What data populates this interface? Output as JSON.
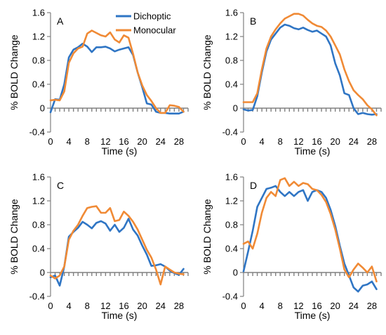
{
  "colors": {
    "dichoptic": "#2F75C4",
    "monocular": "#F08A35",
    "axis": "#808080"
  },
  "chart_data": [
    {
      "type": "line",
      "panel_label": "A",
      "xlabel": "Time (s)",
      "ylabel": "% BOLD Change",
      "xlim": [
        0,
        30
      ],
      "ylim": [
        -0.4,
        1.6
      ],
      "xticks": [
        0,
        4,
        8,
        12,
        16,
        20,
        24,
        28
      ],
      "xtick_labels": [
        "0",
        "4",
        "8",
        "12",
        "16",
        "20",
        "24",
        "28"
      ],
      "yticks": [
        -0.4,
        0,
        0.4,
        0.8,
        1.2,
        1.6
      ],
      "ytick_labels": [
        "-0.4",
        "0",
        "0.4",
        "0.8",
        "1.2",
        "1.6"
      ],
      "legend": {
        "show": true,
        "placement": "top-right"
      },
      "x": [
        0,
        1,
        2,
        3,
        4,
        5,
        6,
        7,
        8,
        9,
        10,
        11,
        12,
        13,
        14,
        15,
        16,
        17,
        18,
        19,
        20,
        21,
        22,
        23,
        24,
        25,
        26,
        27,
        28,
        29
      ],
      "series": [
        {
          "name": "Dichoptic",
          "color": "#2F75C4",
          "values": [
            -0.07,
            0.15,
            0.14,
            0.4,
            0.85,
            0.98,
            1.02,
            1.08,
            1.03,
            0.94,
            1.02,
            1.02,
            1.03,
            1.0,
            0.95,
            0.98,
            1.0,
            1.02,
            0.89,
            0.6,
            0.35,
            0.08,
            0.06,
            -0.06,
            -0.08,
            -0.08,
            -0.09,
            -0.09,
            -0.09,
            -0.06
          ]
        },
        {
          "name": "Monocular",
          "color": "#F08A35",
          "values": [
            0.13,
            0.14,
            0.13,
            0.28,
            0.76,
            0.92,
            1.0,
            1.03,
            1.25,
            1.3,
            1.26,
            1.22,
            1.2,
            1.27,
            1.15,
            1.1,
            1.22,
            1.18,
            0.91,
            0.6,
            0.38,
            0.22,
            0.12,
            0.0,
            -0.08,
            -0.08,
            0.05,
            0.04,
            0.02,
            -0.06
          ]
        }
      ]
    },
    {
      "type": "line",
      "panel_label": "B",
      "xlabel": "Time (s)",
      "ylabel": "% BOLD Change",
      "xlim": [
        0,
        30
      ],
      "ylim": [
        -0.4,
        1.6
      ],
      "xticks": [
        0,
        4,
        8,
        12,
        16,
        20,
        24,
        28
      ],
      "xtick_labels": [
        "0",
        "4",
        "8",
        "12",
        "16",
        "20",
        "24",
        "28"
      ],
      "yticks": [
        -0.4,
        0,
        0.4,
        0.8,
        1.2,
        1.6
      ],
      "ytick_labels": [
        "-0.4",
        "0",
        "0.4",
        "0.8",
        "1.2",
        "1.6"
      ],
      "legend": {
        "show": false
      },
      "x": [
        0,
        1,
        2,
        3,
        4,
        5,
        6,
        7,
        8,
        9,
        10,
        11,
        12,
        13,
        14,
        15,
        16,
        17,
        18,
        19,
        20,
        21,
        22,
        23,
        24,
        25,
        26,
        27,
        28,
        29
      ],
      "series": [
        {
          "name": "Dichoptic",
          "color": "#2F75C4",
          "values": [
            -0.02,
            -0.04,
            -0.03,
            0.2,
            0.6,
            0.95,
            1.15,
            1.25,
            1.35,
            1.4,
            1.38,
            1.34,
            1.32,
            1.35,
            1.31,
            1.28,
            1.3,
            1.25,
            1.2,
            1.05,
            0.75,
            0.55,
            0.25,
            0.22,
            0.0,
            -0.1,
            -0.08,
            -0.1,
            -0.11,
            -0.1
          ]
        },
        {
          "name": "Monocular",
          "color": "#F08A35",
          "values": [
            0.1,
            0.1,
            0.1,
            0.25,
            0.65,
            1.0,
            1.2,
            1.32,
            1.42,
            1.5,
            1.54,
            1.58,
            1.58,
            1.55,
            1.48,
            1.42,
            1.38,
            1.36,
            1.3,
            1.2,
            1.05,
            0.9,
            0.65,
            0.45,
            0.3,
            0.22,
            0.15,
            0.05,
            -0.02,
            -0.12
          ]
        }
      ]
    },
    {
      "type": "line",
      "panel_label": "C",
      "xlabel": "Time (s)",
      "ylabel": "% BOLD Change",
      "xlim": [
        0,
        30
      ],
      "ylim": [
        -0.4,
        1.6
      ],
      "xticks": [
        0,
        4,
        8,
        12,
        16,
        20,
        24,
        28
      ],
      "xtick_labels": [
        "0",
        "4",
        "8",
        "12",
        "16",
        "20",
        "24",
        "28"
      ],
      "yticks": [
        -0.4,
        0,
        0.4,
        0.8,
        1.2,
        1.6
      ],
      "ytick_labels": [
        "-0.4",
        "0",
        "0.4",
        "0.8",
        "1.2",
        "1.6"
      ],
      "legend": {
        "show": false
      },
      "x": [
        0,
        1,
        2,
        3,
        4,
        5,
        6,
        7,
        8,
        9,
        10,
        11,
        12,
        13,
        14,
        15,
        16,
        17,
        18,
        19,
        20,
        21,
        22,
        23,
        24,
        25,
        26,
        27,
        28,
        29
      ],
      "series": [
        {
          "name": "Dichoptic",
          "color": "#2F75C4",
          "values": [
            -0.08,
            -0.05,
            -0.22,
            0.1,
            0.6,
            0.68,
            0.75,
            0.85,
            0.8,
            0.74,
            0.83,
            0.86,
            0.82,
            0.7,
            0.8,
            0.68,
            0.75,
            0.9,
            0.72,
            0.62,
            0.45,
            0.3,
            0.11,
            0.12,
            0.14,
            0.1,
            0.03,
            -0.01,
            -0.04,
            0.06
          ]
        },
        {
          "name": "Monocular",
          "color": "#F08A35",
          "values": [
            -0.05,
            -0.1,
            -0.05,
            0.1,
            0.55,
            0.7,
            0.8,
            0.95,
            1.08,
            1.1,
            1.11,
            1.0,
            1.0,
            1.08,
            0.86,
            0.88,
            1.02,
            0.95,
            0.85,
            0.72,
            0.55,
            0.38,
            0.25,
            0.05,
            -0.2,
            0.1,
            0.05,
            0.0,
            -0.02,
            -0.03
          ]
        }
      ]
    },
    {
      "type": "line",
      "panel_label": "D",
      "xlabel": "Time (s)",
      "ylabel": "% BOLD Change",
      "xlim": [
        0,
        30
      ],
      "ylim": [
        -0.4,
        1.6
      ],
      "xticks": [
        0,
        4,
        8,
        12,
        16,
        20,
        24,
        28
      ],
      "xtick_labels": [
        "0",
        "4",
        "8",
        "12",
        "16",
        "20",
        "24",
        "28"
      ],
      "yticks": [
        -0.4,
        0,
        0.4,
        0.8,
        1.2,
        1.6
      ],
      "ytick_labels": [
        "-0.4",
        "0",
        "0.4",
        "0.8",
        "1.2",
        "1.6"
      ],
      "legend": {
        "show": false
      },
      "x": [
        0,
        1,
        2,
        3,
        4,
        5,
        6,
        7,
        8,
        9,
        10,
        11,
        12,
        13,
        14,
        15,
        16,
        17,
        18,
        19,
        20,
        21,
        22,
        23,
        24,
        25,
        26,
        27,
        28,
        29
      ],
      "series": [
        {
          "name": "Dichoptic",
          "color": "#2F75C4",
          "values": [
            0.02,
            0.35,
            0.7,
            1.1,
            1.25,
            1.4,
            1.42,
            1.45,
            1.35,
            1.28,
            1.35,
            1.28,
            1.35,
            1.38,
            1.2,
            1.35,
            1.38,
            1.35,
            1.25,
            1.05,
            0.78,
            0.45,
            0.15,
            -0.05,
            -0.25,
            -0.32,
            -0.22,
            -0.2,
            -0.15,
            -0.28
          ]
        },
        {
          "name": "Monocular",
          "color": "#F08A35",
          "values": [
            0.48,
            0.52,
            0.4,
            0.65,
            1.0,
            1.25,
            1.35,
            1.28,
            1.55,
            1.58,
            1.45,
            1.52,
            1.45,
            1.5,
            1.48,
            1.4,
            1.38,
            1.3,
            1.18,
            0.98,
            0.72,
            0.4,
            0.05,
            -0.08,
            0.05,
            0.15,
            0.08,
            0.0,
            0.1,
            -0.15
          ]
        }
      ]
    }
  ]
}
